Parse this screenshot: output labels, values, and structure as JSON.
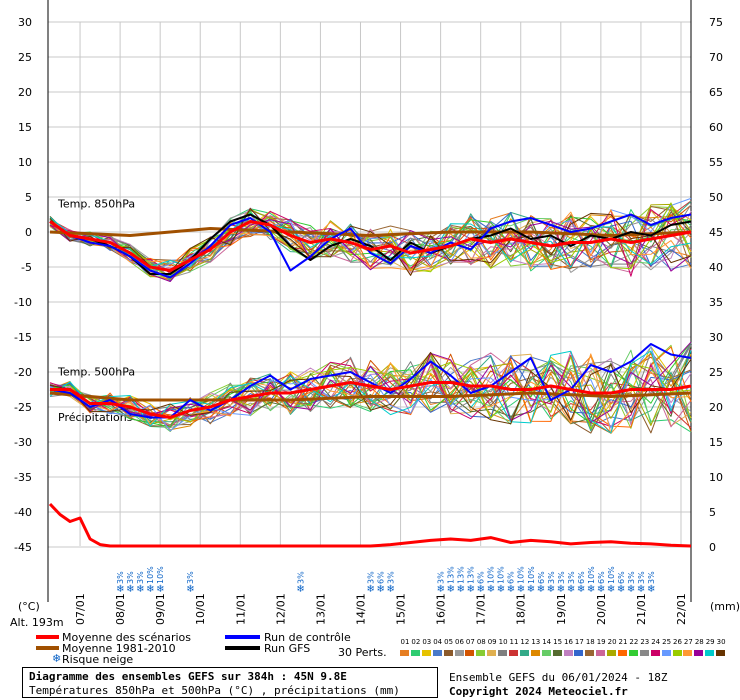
{
  "chart_data": {
    "type": "line",
    "left_axis": {
      "ticks": [
        "30",
        "25",
        "20",
        "15",
        "10",
        "5",
        "0",
        "-5",
        "-10",
        "-15",
        "-20",
        "-25",
        "-30",
        "-35",
        "-40",
        "-45"
      ],
      "unit": "(°C)"
    },
    "right_axis": {
      "ticks": [
        "75",
        "70",
        "65",
        "60",
        "55",
        "50",
        "45",
        "40",
        "35",
        "30",
        "25",
        "20",
        "15",
        "10",
        "5",
        "0"
      ],
      "unit": "(mm)"
    },
    "x_dates": [
      "07/01",
      "08/01",
      "09/01",
      "10/01",
      "11/01",
      "12/01",
      "13/01",
      "14/01",
      "15/01",
      "16/01",
      "17/01",
      "18/01",
      "19/01",
      "20/01",
      "21/01",
      "22/01"
    ],
    "altitude_label": "Alt. 193m",
    "panel_labels": {
      "t850": "Temp. 850hPa",
      "t500": "Temp. 500hPa",
      "precip": "Précipitations"
    },
    "series_mean_850": {
      "name": "Moyenne des scénarios",
      "color": "#ff0000",
      "hours": [
        0,
        12,
        24,
        36,
        48,
        60,
        72,
        84,
        96,
        108,
        120,
        132,
        144,
        156,
        168,
        180,
        192,
        204,
        216,
        228,
        240,
        252,
        264,
        276,
        288,
        300,
        312,
        324,
        336,
        348,
        360,
        372,
        384
      ],
      "values": [
        1.5,
        -0.5,
        -1.0,
        -1.5,
        -3.0,
        -5.0,
        -5.5,
        -4.0,
        -2.5,
        0.0,
        1.5,
        1.0,
        -0.5,
        -1.5,
        -1.0,
        -1.5,
        -2.5,
        -2.0,
        -3.0,
        -2.5,
        -2.0,
        -1.0,
        -1.5,
        -1.0,
        -1.5,
        -2.0,
        -1.5,
        -1.5,
        -1.0,
        -1.5,
        -1.0,
        -0.5,
        0.0
      ]
    },
    "series_control_850": {
      "name": "Run de contrôle",
      "color": "#0000ff",
      "hours": [
        0,
        12,
        24,
        36,
        48,
        60,
        72,
        84,
        96,
        108,
        120,
        132,
        144,
        156,
        168,
        180,
        192,
        204,
        216,
        228,
        240,
        252,
        264,
        276,
        288,
        300,
        312,
        324,
        336,
        348,
        360,
        372,
        384
      ],
      "values": [
        1.5,
        -0.5,
        -1.5,
        -2.0,
        -3.5,
        -5.5,
        -6.5,
        -4.5,
        -2.0,
        1.0,
        2.0,
        0.0,
        -5.5,
        -3.5,
        -1.0,
        0.5,
        -3.0,
        -4.5,
        -2.0,
        -3.0,
        -1.5,
        -2.5,
        0.5,
        1.5,
        2.0,
        1.0,
        0.0,
        0.5,
        1.5,
        2.5,
        1.0,
        2.0,
        2.5
      ]
    },
    "series_gfs_850": {
      "name": "Run GFS",
      "color": "#000000",
      "hours": [
        0,
        12,
        24,
        36,
        48,
        60,
        72,
        84,
        96,
        108,
        120,
        132,
        144,
        156,
        168,
        180,
        192,
        204,
        216,
        228,
        240,
        252,
        264,
        276,
        288,
        300,
        312,
        324,
        336,
        348,
        360,
        372,
        384
      ],
      "values": [
        1.5,
        -0.5,
        -1.0,
        -2.0,
        -3.5,
        -6.0,
        -6.0,
        -4.0,
        -1.0,
        1.5,
        2.5,
        1.0,
        -2.0,
        -4.0,
        -2.0,
        -1.0,
        -2.0,
        -4.0,
        -1.5,
        -3.0,
        -2.0,
        -1.0,
        -0.5,
        0.5,
        -1.0,
        -0.5,
        -2.0,
        -0.5,
        -1.0,
        0.0,
        -0.5,
        1.0,
        1.5
      ]
    },
    "series_climo_850": {
      "name": "Moyenne 1981-2010",
      "color": "#a05000",
      "hours": [
        0,
        48,
        96,
        144,
        192,
        240,
        288,
        336,
        384
      ],
      "values": [
        0.0,
        -0.5,
        0.5,
        0.0,
        -0.5,
        0.0,
        0.0,
        -0.5,
        0.0
      ]
    },
    "series_mean_500": {
      "name": "Moyenne des scénarios",
      "color": "#ff0000",
      "hours": [
        0,
        12,
        24,
        36,
        48,
        60,
        72,
        84,
        96,
        108,
        120,
        132,
        144,
        156,
        168,
        180,
        192,
        204,
        216,
        228,
        240,
        252,
        264,
        276,
        288,
        300,
        312,
        324,
        336,
        348,
        360,
        372,
        384
      ],
      "values": [
        -22.5,
        -22.5,
        -24.5,
        -24.5,
        -25.0,
        -26.0,
        -26.5,
        -25.5,
        -25.0,
        -24.0,
        -23.5,
        -23.0,
        -23.0,
        -22.5,
        -22.0,
        -21.5,
        -22.0,
        -22.5,
        -22.0,
        -21.5,
        -21.5,
        -22.0,
        -22.0,
        -22.5,
        -22.5,
        -22.0,
        -22.5,
        -23.0,
        -23.0,
        -22.5,
        -22.5,
        -22.5,
        -22.0
      ]
    },
    "series_climo_500": {
      "name": "Moyenne 1981-2010",
      "color": "#a05000",
      "hours": [
        0,
        48,
        96,
        144,
        192,
        240,
        288,
        336,
        384
      ],
      "values": [
        -23.0,
        -24.0,
        -24.0,
        -24.0,
        -23.5,
        -23.5,
        -23.0,
        -23.5,
        -23.0
      ]
    },
    "series_control_500": {
      "name": "Run de contrôle",
      "color": "#0000ff",
      "hours": [
        0,
        12,
        24,
        36,
        48,
        60,
        72,
        84,
        96,
        108,
        120,
        132,
        144,
        156,
        168,
        180,
        192,
        204,
        216,
        228,
        240,
        252,
        264,
        276,
        288,
        300,
        312,
        324,
        336,
        348,
        360,
        372,
        384
      ],
      "values": [
        -22.5,
        -23.0,
        -25.0,
        -24.0,
        -26.0,
        -26.5,
        -26.5,
        -24.0,
        -25.5,
        -24.0,
        -22.0,
        -20.5,
        -22.5,
        -21.0,
        -20.5,
        -20.0,
        -21.5,
        -23.0,
        -21.0,
        -18.5,
        -20.5,
        -23.0,
        -22.0,
        -20.0,
        -18.0,
        -24.0,
        -22.5,
        -19.0,
        -20.0,
        -18.5,
        -16.0,
        -17.5,
        -18.0
      ]
    },
    "series_mean_precip_mm": {
      "name": "Moyenne des scénarios",
      "color": "#ff0000",
      "hours": [
        0,
        6,
        12,
        18,
        24,
        30,
        36,
        48,
        96,
        192,
        204,
        216,
        228,
        240,
        252,
        264,
        276,
        288,
        300,
        312,
        324,
        336,
        348,
        360,
        372,
        384
      ],
      "values": [
        6.0,
        4.5,
        3.5,
        4.0,
        1.0,
        0.2,
        0.0,
        0.0,
        0.0,
        0.0,
        0.2,
        0.5,
        0.8,
        1.0,
        0.8,
        1.2,
        0.5,
        0.8,
        0.6,
        0.3,
        0.5,
        0.6,
        0.4,
        0.3,
        0.1,
        0.0
      ]
    },
    "snow_risk_labels": [
      "3%",
      "3%",
      "3%",
      "10%",
      "10%",
      "3%",
      "3%",
      "3%",
      "6%",
      "3%",
      "3%",
      "13%",
      "13%",
      "13%",
      "6%",
      "10%",
      "10%",
      "6%",
      "10%",
      "10%",
      "6%",
      "3%",
      "3%",
      "3%",
      "6%",
      "10%",
      "6%",
      "10%",
      "6%",
      "3%",
      "3%",
      "3%"
    ],
    "legend": [
      {
        "label": "Moyenne des scénarios",
        "color": "#ff0000"
      },
      {
        "label": "Moyenne 1981-2010",
        "color": "#a05000"
      },
      {
        "label": "Run de contrôle",
        "color": "#0000ff"
      },
      {
        "label": "Run GFS",
        "color": "#000000"
      },
      {
        "label": "Risque neige",
        "icon": "snowflake-icon",
        "color": "#0a62c6"
      }
    ],
    "perturbations": {
      "label": "30 Perts.",
      "numbers": [
        "01",
        "02",
        "03",
        "04",
        "05",
        "06",
        "07",
        "08",
        "09",
        "10",
        "11",
        "12",
        "13",
        "14",
        "15",
        "16",
        "17",
        "18",
        "19",
        "20",
        "21",
        "22",
        "23",
        "24",
        "25",
        "26",
        "27",
        "28",
        "29",
        "30"
      ],
      "colors": [
        "#e67e22",
        "#2ecc71",
        "#e6c200",
        "#4a7ac9",
        "#8b5a2b",
        "#999999",
        "#d35400",
        "#88cc33",
        "#e0b050",
        "#7f7f7f",
        "#cc3333",
        "#33aa88",
        "#dd8800",
        "#66cc66",
        "#556b2f",
        "#c080c0",
        "#3366cc",
        "#996633",
        "#cc6699",
        "#aaaa00",
        "#ff6600",
        "#33cc33",
        "#888888",
        "#cc0066",
        "#6699ff",
        "#99cc00",
        "#ff9933",
        "#990099",
        "#00cccc",
        "#663300"
      ]
    }
  },
  "footer": {
    "title": "Diagramme des ensembles GEFS sur 384h : 45N 9.8E",
    "subtitle": "Températures 850hPa et 500hPa (°C) , précipitations (mm)",
    "ensemble_info": "Ensemble GEFS du 06/01/2024 - 18Z",
    "copyright": "Copyright 2024 Meteociel.fr"
  }
}
